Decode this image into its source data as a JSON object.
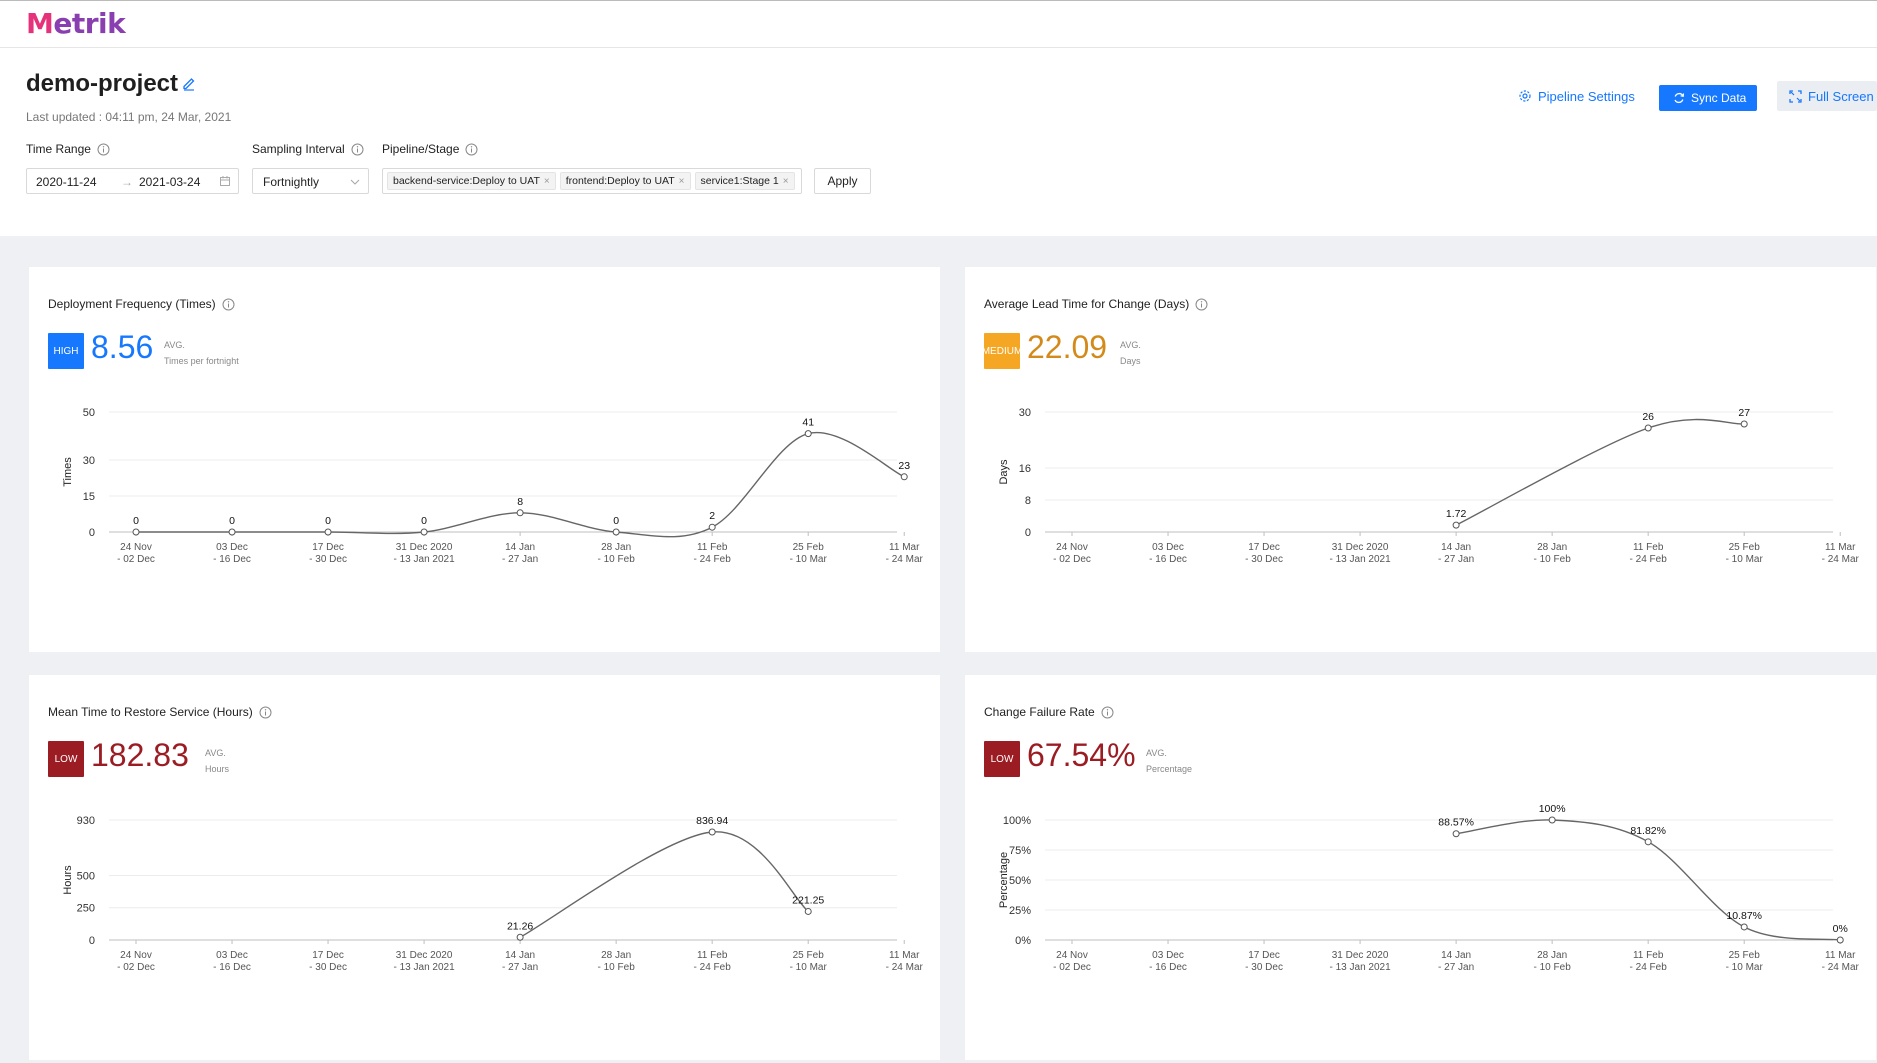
{
  "app": {
    "logo": "Metrik"
  },
  "header": {
    "project_name": "demo-project",
    "last_updated": "Last updated : 04:11 pm, 24 Mar, 2021",
    "pipeline_settings_label": "Pipeline Settings",
    "sync_label": "Sync Data",
    "fullscreen_label": "Full Screen"
  },
  "filters": {
    "time_range_label": "Time Range",
    "start_date": "2020-11-24",
    "end_date": "2021-03-24",
    "sampling_label": "Sampling Interval",
    "sampling_value": "Fortnightly",
    "pipeline_label": "Pipeline/Stage",
    "pipeline_tags": [
      "backend-service:Deploy to UAT",
      "frontend:Deploy to UAT",
      "service1:Stage 1"
    ],
    "apply_label": "Apply"
  },
  "colors": {
    "accent": "#1677ff",
    "high": "#1677ff",
    "medium": "#f5a623",
    "medium_text": "#d48a1a",
    "low": "#9b1c23"
  },
  "metrics": {
    "deployment": {
      "title": "Deployment Frequency (Times)",
      "badge": "HIGH",
      "value": "8.56",
      "avg": "AVG.",
      "unit": "Times per fortnight"
    },
    "lead_time": {
      "title": "Average Lead Time for Change (Days)",
      "badge": "MEDIUM",
      "value": "22.09",
      "avg": "AVG.",
      "unit": "Days"
    },
    "mttr": {
      "title": "Mean Time to Restore Service (Hours)",
      "badge": "LOW",
      "value": "182.83",
      "avg": "AVG.",
      "unit": "Hours"
    },
    "cfr": {
      "title": "Change Failure Rate",
      "badge": "LOW",
      "value": "67.54%",
      "avg": "AVG.",
      "unit": "Percentage"
    }
  },
  "chart_data": [
    {
      "id": "deployment",
      "type": "line",
      "ylabel": "Times",
      "categories": [
        [
          "24 Nov",
          "- 02 Dec"
        ],
        [
          "03 Dec",
          "- 16 Dec"
        ],
        [
          "17 Dec",
          "- 30 Dec"
        ],
        [
          "31 Dec 2020",
          "- 13 Jan 2021"
        ],
        [
          "14 Jan",
          "- 27 Jan"
        ],
        [
          "28 Jan",
          "- 10 Feb"
        ],
        [
          "11 Feb",
          "- 24 Feb"
        ],
        [
          "25 Feb",
          "- 10 Mar"
        ],
        [
          "11 Mar",
          "- 24 Mar"
        ]
      ],
      "values": [
        0,
        0,
        0,
        0,
        8,
        0,
        2,
        41,
        23
      ],
      "labels": [
        "0",
        "0",
        "0",
        "0",
        "8",
        "0",
        "2",
        "41",
        "23"
      ],
      "yticks": [
        0,
        15,
        30,
        50
      ],
      "ytick_labels": [
        "0",
        "15",
        "30",
        "50"
      ],
      "ylim": [
        0,
        50
      ]
    },
    {
      "id": "lead_time",
      "type": "line",
      "ylabel": "Days",
      "categories": [
        [
          "24 Nov",
          "- 02 Dec"
        ],
        [
          "03 Dec",
          "- 16 Dec"
        ],
        [
          "17 Dec",
          "- 30 Dec"
        ],
        [
          "31 Dec 2020",
          "- 13 Jan 2021"
        ],
        [
          "14 Jan",
          "- 27 Jan"
        ],
        [
          "28 Jan",
          "- 10 Feb"
        ],
        [
          "11 Feb",
          "- 24 Feb"
        ],
        [
          "25 Feb",
          "- 10 Mar"
        ],
        [
          "11 Mar",
          "- 24 Mar"
        ]
      ],
      "values": [
        null,
        null,
        null,
        null,
        1.72,
        null,
        26,
        27,
        null
      ],
      "labels": [
        "",
        "",
        "",
        "",
        "1.72",
        "",
        "26",
        "27",
        ""
      ],
      "yticks": [
        0,
        8,
        16,
        30
      ],
      "ytick_labels": [
        "0",
        "8",
        "16",
        "30"
      ],
      "ylim": [
        0,
        30
      ]
    },
    {
      "id": "mttr",
      "type": "line",
      "ylabel": "Hours",
      "categories": [
        [
          "24 Nov",
          "- 02 Dec"
        ],
        [
          "03 Dec",
          "- 16 Dec"
        ],
        [
          "17 Dec",
          "- 30 Dec"
        ],
        [
          "31 Dec 2020",
          "- 13 Jan 2021"
        ],
        [
          "14 Jan",
          "- 27 Jan"
        ],
        [
          "28 Jan",
          "- 10 Feb"
        ],
        [
          "11 Feb",
          "- 24 Feb"
        ],
        [
          "25 Feb",
          "- 10 Mar"
        ],
        [
          "11 Mar",
          "- 24 Mar"
        ]
      ],
      "values": [
        null,
        null,
        null,
        null,
        21.26,
        null,
        836.94,
        221.25,
        null
      ],
      "labels": [
        "",
        "",
        "",
        "",
        "21.26",
        "",
        "836.94",
        "221.25",
        ""
      ],
      "yticks": [
        0,
        250,
        500,
        930
      ],
      "ytick_labels": [
        "0",
        "250",
        "500",
        "930"
      ],
      "ylim": [
        0,
        930
      ]
    },
    {
      "id": "cfr",
      "type": "line",
      "ylabel": "Percentage",
      "categories": [
        [
          "24 Nov",
          "- 02 Dec"
        ],
        [
          "03 Dec",
          "- 16 Dec"
        ],
        [
          "17 Dec",
          "- 30 Dec"
        ],
        [
          "31 Dec 2020",
          "- 13 Jan 2021"
        ],
        [
          "14 Jan",
          "- 27 Jan"
        ],
        [
          "28 Jan",
          "- 10 Feb"
        ],
        [
          "11 Feb",
          "- 24 Feb"
        ],
        [
          "25 Feb",
          "- 10 Mar"
        ],
        [
          "11 Mar",
          "- 24 Mar"
        ]
      ],
      "values": [
        null,
        null,
        null,
        null,
        88.57,
        100,
        81.82,
        10.87,
        0
      ],
      "labels": [
        "",
        "",
        "",
        "",
        "88.57%",
        "100%",
        "81.82%",
        "10.87%",
        "0%"
      ],
      "yticks": [
        0,
        25,
        50,
        75,
        100
      ],
      "ytick_labels": [
        "0%",
        "25%",
        "50%",
        "75%",
        "100%"
      ],
      "ylim": [
        0,
        100
      ]
    }
  ]
}
